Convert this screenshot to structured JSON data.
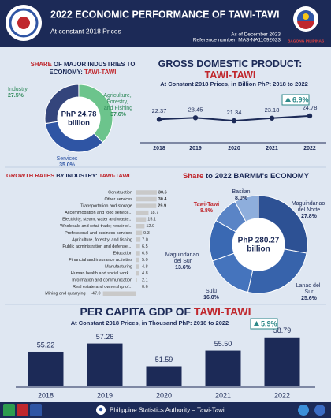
{
  "header": {
    "title": "2022 ECONOMIC PERFORMANCE OF TAWI-TAWI",
    "subtitle": "At constant 2018 Prices",
    "as_of": "As of December 2023",
    "reference": "Reference number: MAS-NA11092023",
    "logo_text": "BAGONG PILIPINAS"
  },
  "chart_data": [
    {
      "type": "pie",
      "title": [
        "SHARE",
        " OF MAJOR INDUSTRIES TO",
        "ECONOMY: ",
        "TAWI-TAWI"
      ],
      "center_label": [
        "PhP 24.78",
        "billion"
      ],
      "categories": [
        "Industry",
        "Agriculture, Forestry, and Fishing",
        "Services"
      ],
      "values": [
        27.5,
        37.6,
        35.0
      ],
      "value_labels": [
        "27.5%",
        "37.6%",
        "35.0%"
      ],
      "colors": [
        "#34457c",
        "#6cc48c",
        "#2f55a4"
      ]
    },
    {
      "type": "line",
      "title": [
        "GROSS DOMESTIC PRODUCT:",
        "TAWI-TAWI"
      ],
      "subtitle": "At Constant 2018 Prices, in Billion PhP: 2018 to 2022",
      "categories": [
        "2018",
        "2019",
        "2020",
        "2021",
        "2022"
      ],
      "values": [
        22.37,
        23.45,
        21.34,
        23.18,
        24.78
      ],
      "annotation": "6.9%",
      "color": "#1c2a57"
    },
    {
      "type": "bar",
      "orientation": "horizontal",
      "title": [
        "GROWTH RATES",
        " BY INDUSTRY: ",
        "TAWI-TAWI"
      ],
      "categories": [
        "Construction",
        "Other services",
        "Transportation and storage",
        "Accommodation and food service...",
        "Electricity, steam, water and waste...",
        "Wholesale and retail trade; repair of...",
        "Professional and business services",
        "Agriculture, forestry, and fishing",
        "Public administration and defense;...",
        "Education",
        "Financial and insurance activities",
        "Manufacturing",
        "Human health and social work...",
        "Information and communication",
        "Real estate and ownership of...",
        "Mining and quarrying"
      ],
      "values": [
        30.6,
        30.4,
        29.9,
        18.7,
        15.1,
        12.9,
        9.3,
        7.0,
        6.5,
        6.5,
        5.0,
        4.8,
        4.8,
        2.1,
        0.6,
        -47.0
      ],
      "value_labels": [
        "30.6",
        "30.4",
        "29.9",
        "18.7",
        "15.1",
        "12.9",
        "9.3",
        "7.0",
        "6.5",
        "6.5",
        "5.0",
        "4.8",
        "4.8",
        "2.1",
        "0.6",
        "-47.0"
      ],
      "color": "#c9c9c9"
    },
    {
      "type": "pie",
      "title": [
        "Share",
        " to 2022 BARMM's ECONOMY"
      ],
      "center_label": [
        "PhP 280.27",
        "billion"
      ],
      "categories": [
        "Maguindanao del Norte",
        "Lanao del Sur",
        "Sulu",
        "Maguindanao del Sur",
        "Tawi-Tawi",
        "Basilan"
      ],
      "values": [
        27.8,
        25.6,
        16.0,
        13.6,
        8.8,
        8.0
      ],
      "value_labels": [
        "27.8%",
        "25.6%",
        "16.0%",
        "13.6%",
        "8.8%",
        "8.0%"
      ],
      "colors": [
        "#2d5194",
        "#3763ab",
        "#4574bd",
        "#3a69b3",
        "#5a84c6",
        "#8eaedc"
      ]
    },
    {
      "type": "bar",
      "orientation": "vertical",
      "title": [
        "PER CAPITA GDP OF ",
        "TAWI-TAWI"
      ],
      "subtitle": "At Constant 2018 Prices, in Thousand PhP: 2018 to 2022",
      "categories": [
        "2018",
        "2019",
        "2020",
        "2021",
        "2022"
      ],
      "values": [
        55.22,
        57.26,
        51.59,
        55.5,
        58.79
      ],
      "value_labels": [
        "55.22",
        "57.26",
        "51.59",
        "55.50",
        "58.79"
      ],
      "annotation": "5.9%",
      "color": "#1c2a57"
    }
  ],
  "footer": {
    "text": "Philippine Statistics Authority – Tawi-Tawi"
  }
}
